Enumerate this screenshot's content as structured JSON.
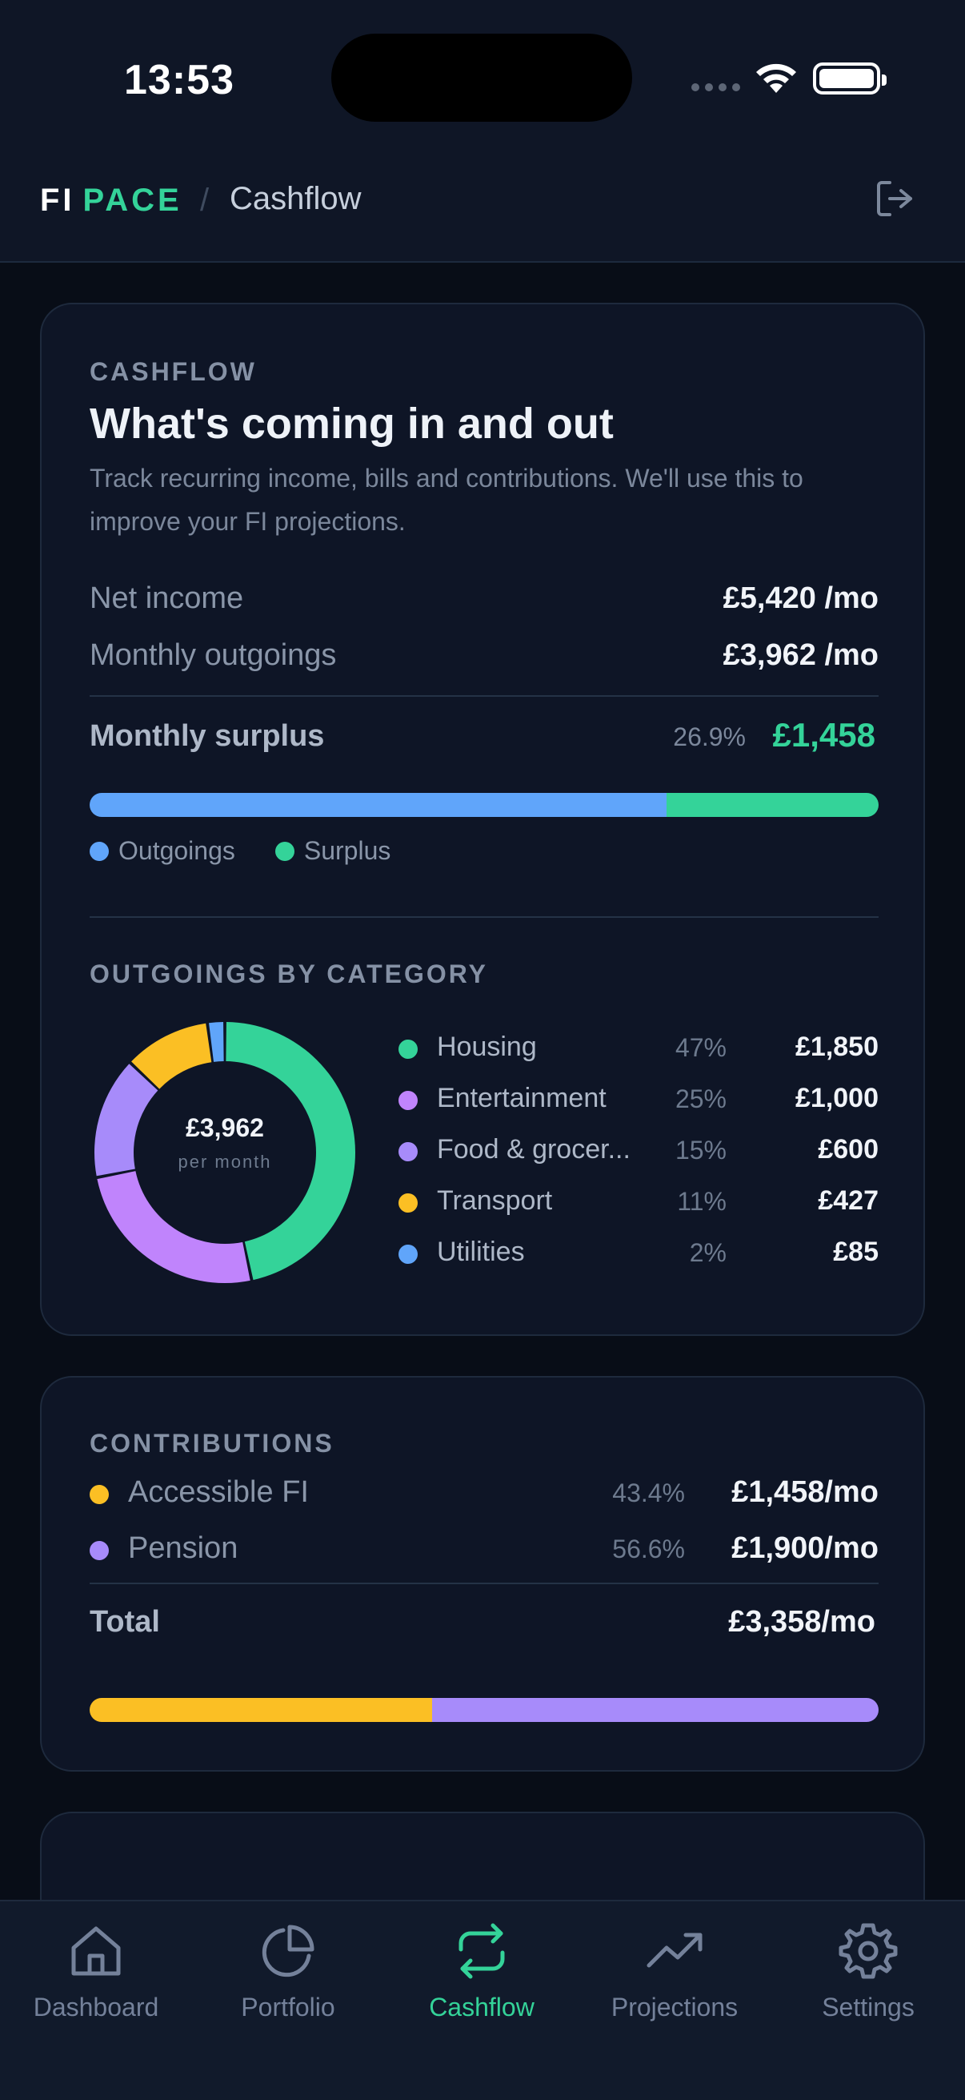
{
  "status_bar": {
    "time": "13:53"
  },
  "header": {
    "brand_first": "FI",
    "brand_second": "PACE",
    "separator": "/",
    "title": "Cashflow",
    "logout_icon": "logout-icon"
  },
  "cashflow": {
    "eyebrow": "CASHFLOW",
    "title": "What's coming in and out",
    "description": "Track recurring income, bills and contributions. We'll use this to improve your FI projections.",
    "net_income_label": "Net income",
    "net_income_value": "£5,420 /mo",
    "outgoings_label": "Monthly outgoings",
    "outgoings_value": "£3,962 /mo",
    "surplus_label": "Monthly surplus",
    "surplus_pct": "26.9%",
    "surplus_value": "£1,458",
    "split": [
      {
        "name": "Outgoings",
        "value": 3962,
        "color": "#60a5fa"
      },
      {
        "name": "Surplus",
        "value": 1458,
        "color": "#34d399"
      }
    ]
  },
  "outgoings": {
    "eyebrow": "OUTGOINGS BY CATEGORY",
    "total": "£3,962",
    "total_sub": "per month",
    "categories": [
      {
        "name": "Housing",
        "pct": "47%",
        "amount": "£1,850",
        "value": 1850,
        "color": "#34d399"
      },
      {
        "name": "Entertainment",
        "pct": "25%",
        "amount": "£1,000",
        "value": 1000,
        "color": "#c084fc"
      },
      {
        "name": "Food & grocer...",
        "pct": "15%",
        "amount": "£600",
        "value": 600,
        "color": "#a78bfa"
      },
      {
        "name": "Transport",
        "pct": "11%",
        "amount": "£427",
        "value": 427,
        "color": "#fbbf24"
      },
      {
        "name": "Utilities",
        "pct": "2%",
        "amount": "£85",
        "value": 85,
        "color": "#60a5fa"
      }
    ]
  },
  "contributions": {
    "eyebrow": "CONTRIBUTIONS",
    "items": [
      {
        "name": "Accessible FI",
        "pct": "43.4%",
        "amount": "£1,458/mo",
        "value": 1458,
        "color": "#fbbf24"
      },
      {
        "name": "Pension",
        "pct": "56.6%",
        "amount": "£1,900/mo",
        "value": 1900,
        "color": "#a78bfa"
      }
    ],
    "total_label": "Total",
    "total_value": "£3,358/mo"
  },
  "nav": {
    "items": [
      {
        "label": "Dashboard",
        "icon": "home-icon",
        "active": false
      },
      {
        "label": "Portfolio",
        "icon": "pie-chart-icon",
        "active": false
      },
      {
        "label": "Cashflow",
        "icon": "repeat-icon",
        "active": true
      },
      {
        "label": "Projections",
        "icon": "trending-up-icon",
        "active": false
      },
      {
        "label": "Settings",
        "icon": "gear-icon",
        "active": false
      }
    ]
  },
  "colors": {
    "accent": "#34d399",
    "background": "#080d17",
    "card": "#0e1526"
  }
}
